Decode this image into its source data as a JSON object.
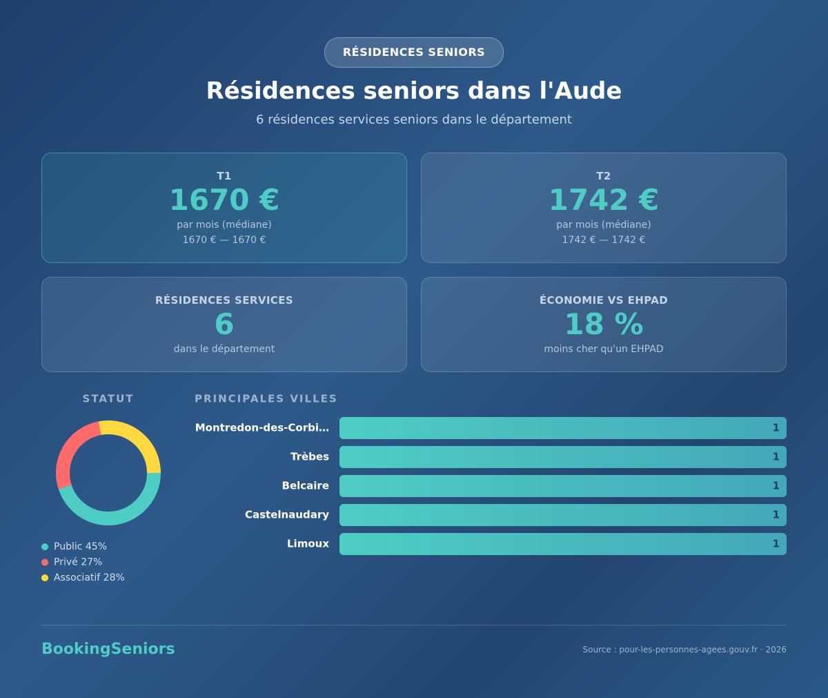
{
  "header": {
    "badge": "RÉSIDENCES SENIORS",
    "title": "Résidences seniors dans l'Aude",
    "subtitle": "6 résidences services seniors dans le département"
  },
  "cards": [
    {
      "label": "T1",
      "value": "1670 €",
      "note": "par mois (médiane)",
      "range": "1670 € — 1670 €"
    },
    {
      "label": "T2",
      "value": "1742 €",
      "note": "par mois (médiane)",
      "range": "1742 € — 1742 €"
    },
    {
      "label": "RÉSIDENCES SERVICES",
      "value": "6",
      "note": "dans le département"
    },
    {
      "label": "ÉCONOMIE VS EHPAD",
      "value": "18 %",
      "note": "moins cher qu'un EHPAD"
    }
  ],
  "chart_data": [
    {
      "type": "donut",
      "title": "STATUT",
      "series": [
        {
          "name": "Public",
          "color": "#4ecdc4",
          "values": [
            45
          ],
          "value_labels": [
            "45%"
          ]
        },
        {
          "name": "Privé",
          "color": "#ff6b6b",
          "values": [
            27
          ],
          "value_labels": [
            "27%"
          ]
        },
        {
          "name": "Associatif",
          "color": "#ffd93d",
          "values": [
            28
          ],
          "value_labels": [
            "28%"
          ]
        }
      ]
    },
    {
      "type": "hbar",
      "title": "PRINCIPALES VILLES",
      "color": "#4ecdc4",
      "categories": [
        "Montredon-des-Corbi…",
        "Trèbes",
        "Belcaire",
        "Castelnaudary",
        "Limoux"
      ],
      "values": [
        1,
        1,
        1,
        1,
        1
      ]
    }
  ],
  "footer": {
    "brand": "BookingSeniors",
    "source": "Source : pour-les-personnes-agees.gouv.fr · 2026"
  }
}
